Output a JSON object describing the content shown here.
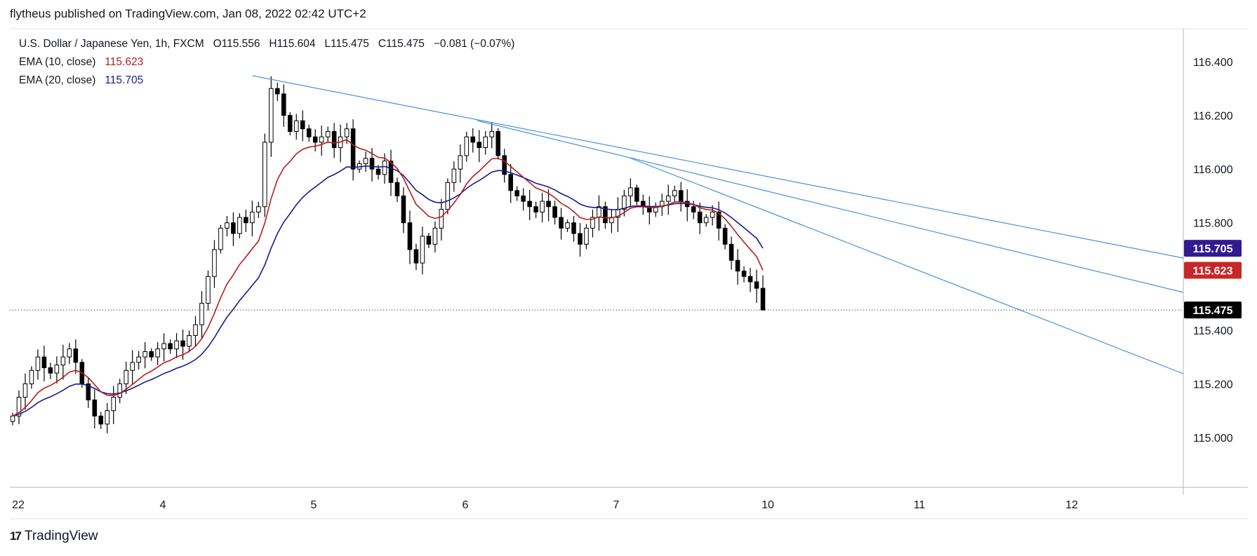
{
  "publish_line": "flytheus published on TradingView.com, Jan 08, 2022 02:42 UTC+2",
  "footer": {
    "brand": "TradingView",
    "logo_icon": "tradingview-logo-icon"
  },
  "legend": {
    "symbol": "U.S. Dollar / Japanese Yen, 1h, FXCM",
    "open": "O115.556",
    "high": "H115.604",
    "low": "L115.475",
    "close": "C115.475",
    "change": "−0.081 (−0.07%)",
    "ema10_label": "EMA (10, close)",
    "ema10_value": "115.623",
    "ema20_label": "EMA (20, close)",
    "ema20_value": "115.705"
  },
  "colors": {
    "ema10": "#b71c1c",
    "ema20": "#1a1a8c",
    "trendline": "#4a90e2",
    "ema10_badge": "#c62828",
    "ema20_badge": "#311b92",
    "price_badge": "#000000",
    "bull_fill": "#ffffff",
    "bear_fill": "#000000",
    "grid": "#e0e3eb"
  },
  "chart_data": {
    "type": "candlestick",
    "title": "U.S. Dollar / Japanese Yen, 1h, FXCM",
    "x_ticks": [
      "22",
      "4",
      "5",
      "6",
      "7",
      "10",
      "11",
      "12"
    ],
    "y_ticks": [
      "116.400",
      "116.200",
      "116.000",
      "115.800",
      "115.400",
      "115.200",
      "115.000"
    ],
    "ylim": [
      114.82,
      116.52
    ],
    "grid": false,
    "last_price": 115.475,
    "price_badge_labels": {
      "ema20": "115.705",
      "ema10": "115.623",
      "last": "115.475"
    },
    "close_series_approx": [
      115.08,
      115.15,
      115.2,
      115.25,
      115.3,
      115.26,
      115.24,
      115.27,
      115.3,
      115.33,
      115.28,
      115.2,
      115.14,
      115.08,
      115.05,
      115.1,
      115.15,
      115.2,
      115.25,
      115.28,
      115.3,
      115.32,
      115.3,
      115.33,
      115.35,
      115.33,
      115.36,
      115.34,
      115.38,
      115.42,
      115.5,
      115.6,
      115.7,
      115.78,
      115.8,
      115.76,
      115.82,
      115.8,
      115.84,
      115.86,
      116.1,
      116.3,
      116.28,
      116.2,
      116.14,
      116.18,
      116.15,
      116.12,
      116.1,
      116.12,
      116.14,
      116.08,
      116.12,
      116.15,
      116.0,
      116.02,
      116.04,
      116.0,
      115.98,
      116.03,
      115.95,
      115.9,
      115.8,
      115.7,
      115.65,
      115.75,
      115.72,
      115.78,
      115.85,
      115.95,
      116.0,
      116.05,
      116.12,
      116.1,
      116.08,
      116.12,
      116.14,
      116.05,
      115.98,
      115.92,
      115.9,
      115.88,
      115.86,
      115.84,
      115.88,
      115.86,
      115.82,
      115.78,
      115.8,
      115.76,
      115.72,
      115.78,
      115.82,
      115.86,
      115.8,
      115.82,
      115.85,
      115.9,
      115.93,
      115.88,
      115.86,
      115.84,
      115.86,
      115.88,
      115.9,
      115.92,
      115.88,
      115.86,
      115.84,
      115.8,
      115.82,
      115.84,
      115.78,
      115.72,
      115.66,
      115.62,
      115.6,
      115.58,
      115.556,
      115.475
    ],
    "ema10_end": 115.623,
    "ema20_end": 115.705,
    "trendlines": [
      {
        "from": {
          "x": "Jan 4 12:00",
          "y": 116.35
        },
        "to": {
          "x": "Jan 12 ~18:00",
          "y": 115.68
        }
      },
      {
        "from": {
          "x": "Jan 6 01:00",
          "y": 116.18
        },
        "to": {
          "x": "Jan 12 ~18:00",
          "y": 115.55
        }
      },
      {
        "from": {
          "x": "Jan 7 01:00",
          "y": 116.05
        },
        "to": {
          "x": "Jan 12 ~18:00",
          "y": 115.24
        }
      }
    ]
  }
}
